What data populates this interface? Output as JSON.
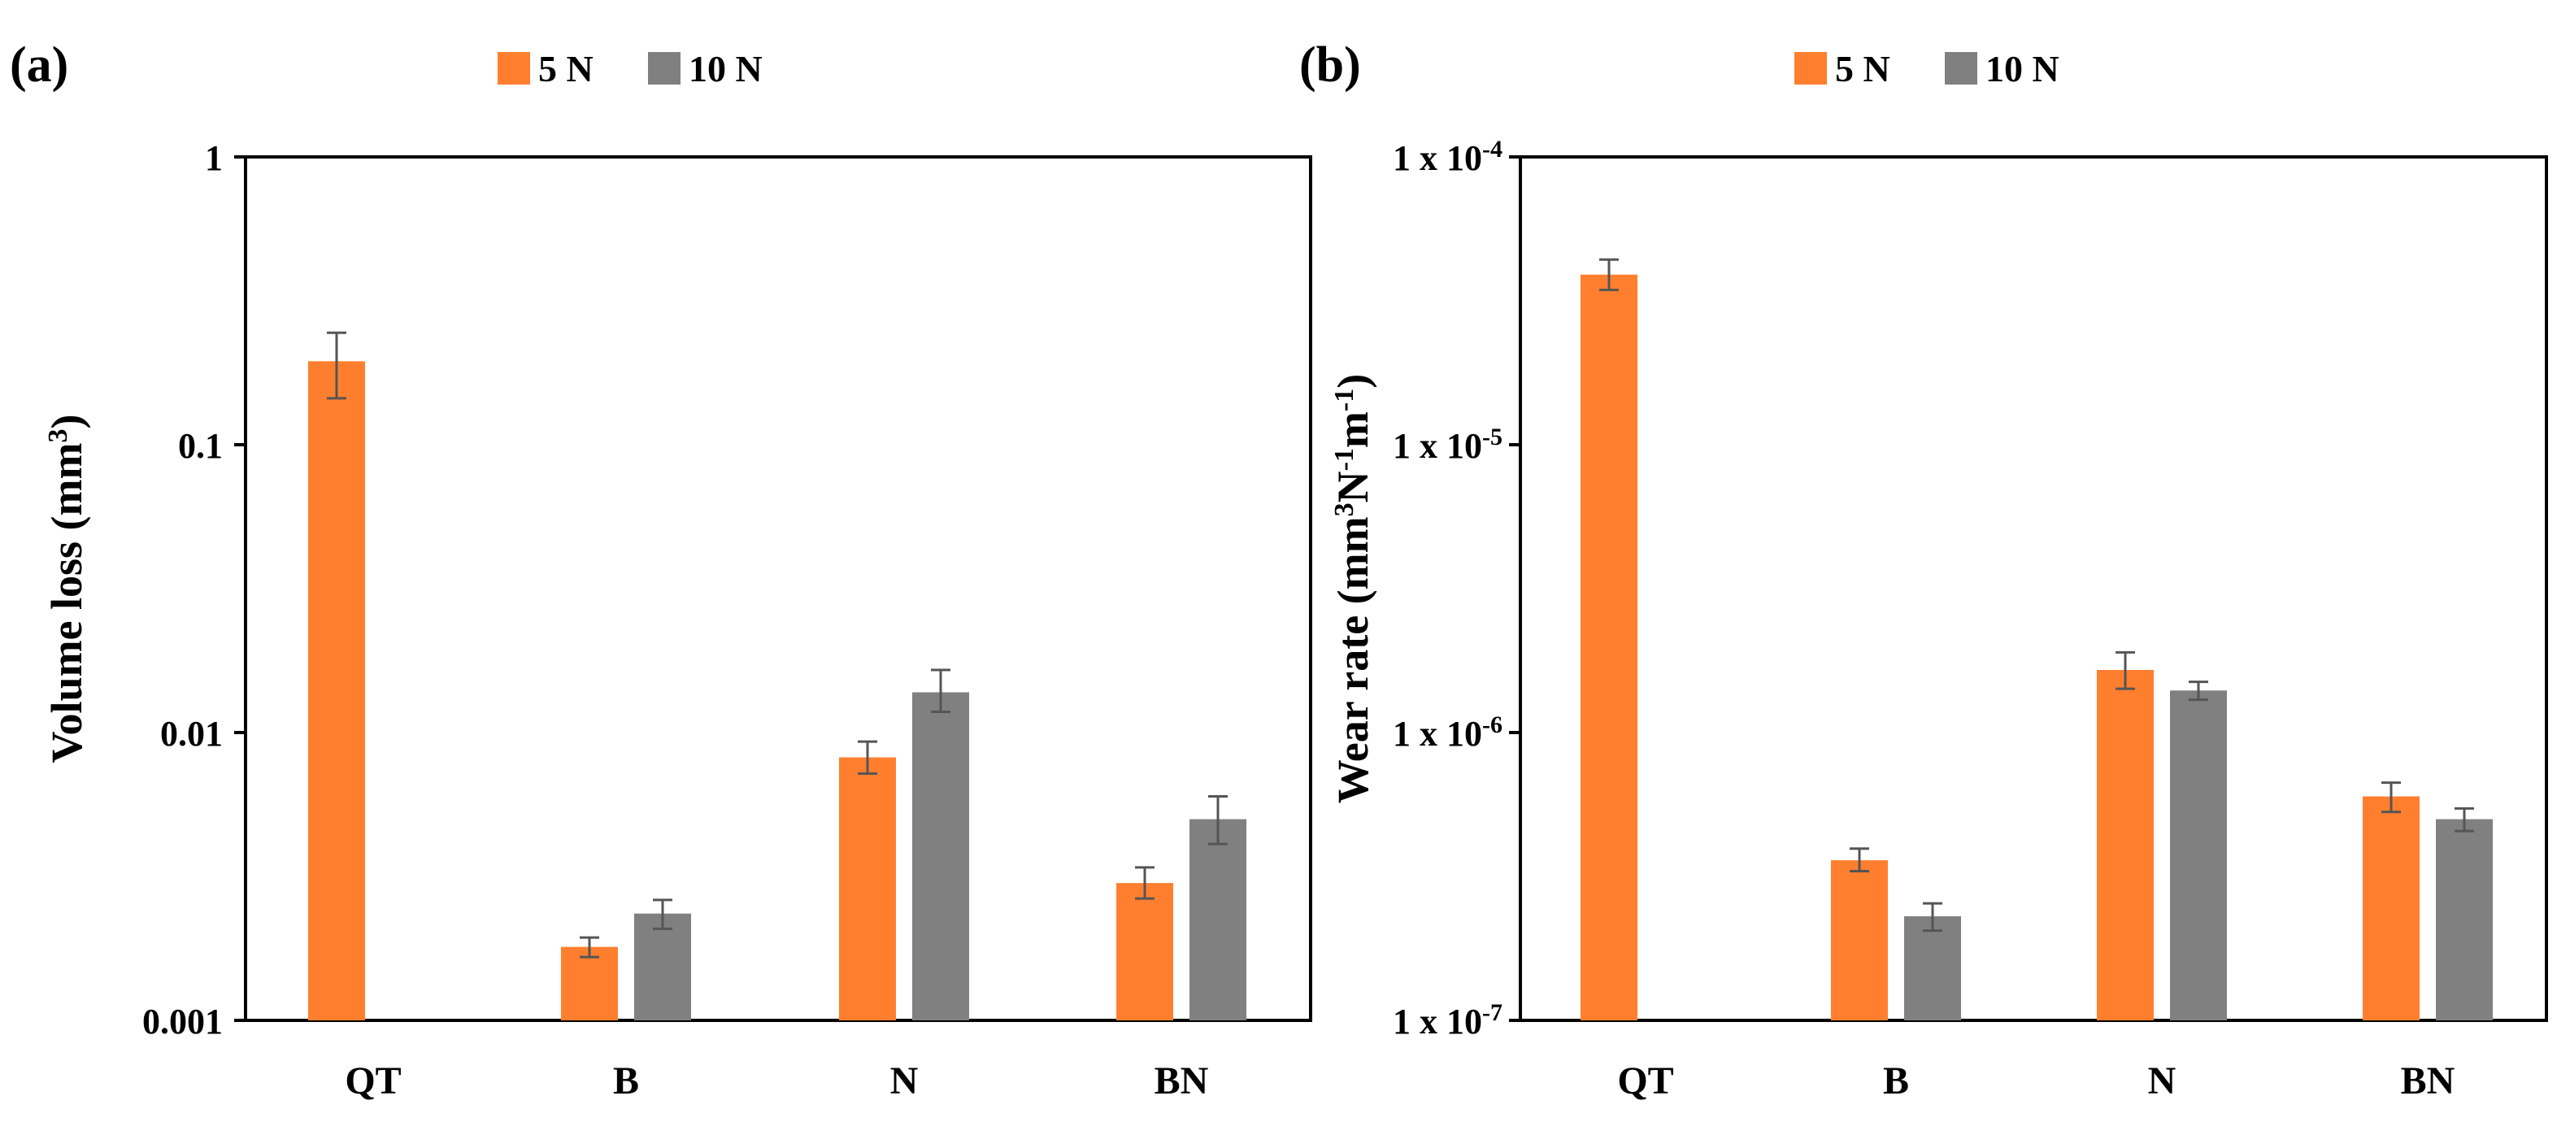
{
  "figure": {
    "panel_a_label": "(a)",
    "panel_b_label": "(b)"
  },
  "legend": [
    {
      "name": "5 N",
      "color": "#FF7F2E"
    },
    {
      "name": "10 N",
      "color": "#808080"
    }
  ],
  "chart_data": [
    {
      "type": "bar",
      "scale": "log",
      "title": "",
      "xlabel": "",
      "ylabel_main": "Volume loss (mm",
      "ylabel_sup": "3",
      "ylabel_end": ")",
      "ylim": [
        0.001,
        1
      ],
      "yticks": [
        {
          "value": 0.001,
          "label": "0.001"
        },
        {
          "value": 0.01,
          "label": "0.01"
        },
        {
          "value": 0.1,
          "label": "0.1"
        },
        {
          "value": 1,
          "label": "1"
        }
      ],
      "categories": [
        "QT",
        "B",
        "N",
        "BN"
      ],
      "series": [
        {
          "name": "5 N",
          "values": [
            0.195,
            0.0018,
            0.0082,
            0.003
          ],
          "err_low": [
            0.145,
            0.00166,
            0.0072,
            0.00265
          ],
          "err_high": [
            0.245,
            0.00194,
            0.0093,
            0.0034
          ]
        },
        {
          "name": "10 N",
          "values": [
            null,
            0.00235,
            0.0138,
            0.005
          ],
          "err_low": [
            null,
            0.00208,
            0.0118,
            0.0041
          ],
          "err_high": [
            null,
            0.00262,
            0.0165,
            0.006
          ]
        }
      ]
    },
    {
      "type": "bar",
      "scale": "log",
      "title": "",
      "xlabel": "",
      "ylabel_main": "Wear rate (mm",
      "ylabel_sup1": "3",
      "ylabel_mid": "N",
      "ylabel_sup2": "-1",
      "ylabel_mid2": "m",
      "ylabel_sup3": "-1",
      "ylabel_end": ")",
      "ylim": [
        1e-07,
        0.0001
      ],
      "yticks": [
        {
          "value": 1e-07,
          "base": "1 x 10",
          "exp": "-7"
        },
        {
          "value": 1e-06,
          "base": "1 x 10",
          "exp": "-6"
        },
        {
          "value": 1e-05,
          "base": "1 x 10",
          "exp": "-5"
        },
        {
          "value": 0.0001,
          "base": "1 x 10",
          "exp": "-4"
        }
      ],
      "categories": [
        "QT",
        "B",
        "N",
        "BN"
      ],
      "series": [
        {
          "name": "5 N",
          "values": [
            3.9e-05,
            3.6e-07,
            1.65e-06,
            6e-07
          ],
          "err_low": [
            3.45e-05,
            3.3e-07,
            1.42e-06,
            5.3e-07
          ],
          "err_high": [
            4.4e-05,
            3.95e-07,
            1.9e-06,
            6.7e-07
          ]
        },
        {
          "name": "10 N",
          "values": [
            null,
            2.3e-07,
            1.4e-06,
            5e-07
          ],
          "err_low": [
            null,
            2.05e-07,
            1.3e-06,
            4.55e-07
          ],
          "err_high": [
            null,
            2.55e-07,
            1.5e-06,
            5.45e-07
          ]
        }
      ]
    }
  ]
}
